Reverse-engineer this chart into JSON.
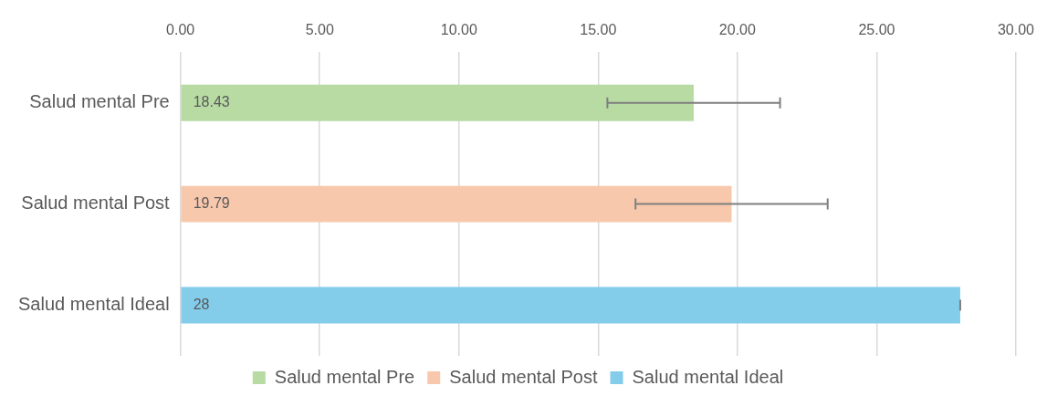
{
  "chart_data": {
    "type": "bar",
    "orientation": "horizontal",
    "stacked": true,
    "categories": [
      "Salud mental Pre",
      "Salud mental Post",
      "Salud mental Ideal"
    ],
    "series": [
      {
        "name": "Salud mental Pre",
        "color": "#b8dba4",
        "values": [
          18.43,
          null,
          null
        ],
        "errors": [
          3.1,
          null,
          null
        ]
      },
      {
        "name": "Salud mental Post",
        "color": "#f8c8ad",
        "values": [
          null,
          19.79,
          null
        ],
        "errors": [
          null,
          3.45,
          null
        ]
      },
      {
        "name": "Salud mental Ideal",
        "color": "#83cdeb",
        "values": [
          null,
          null,
          28
        ],
        "errors": [
          null,
          null,
          0
        ]
      }
    ],
    "xlim": [
      0,
      30
    ],
    "xticks": [
      {
        "value": 0,
        "label": "0.00"
      },
      {
        "value": 5,
        "label": "5.00"
      },
      {
        "value": 10,
        "label": "10.00"
      },
      {
        "value": 15,
        "label": "15.00"
      },
      {
        "value": 20,
        "label": "20.00"
      },
      {
        "value": 25,
        "label": "25.00"
      },
      {
        "value": 30,
        "label": "30.00"
      }
    ],
    "grid": "x",
    "legend": "bottom",
    "data_labels": true
  }
}
